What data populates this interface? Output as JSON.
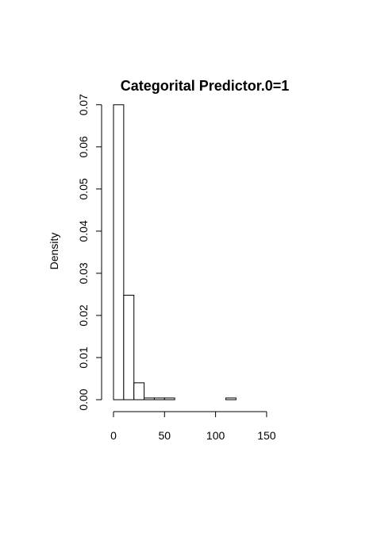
{
  "chart_data": {
    "type": "bar",
    "title": "Categorital Predictor.0=1",
    "xlabel": "",
    "ylabel": "Density",
    "bin_width": 10,
    "bins": [
      {
        "x0": 0,
        "x1": 10,
        "density": 0.07
      },
      {
        "x0": 10,
        "x1": 20,
        "density": 0.0248
      },
      {
        "x0": 20,
        "x1": 30,
        "density": 0.004
      },
      {
        "x0": 30,
        "x1": 40,
        "density": 0.0004
      },
      {
        "x0": 40,
        "x1": 50,
        "density": 0.0004
      },
      {
        "x0": 50,
        "x1": 60,
        "density": 0.0004
      },
      {
        "x0": 60,
        "x1": 70,
        "density": 0
      },
      {
        "x0": 70,
        "x1": 80,
        "density": 0
      },
      {
        "x0": 80,
        "x1": 90,
        "density": 0
      },
      {
        "x0": 90,
        "x1": 100,
        "density": 0
      },
      {
        "x0": 100,
        "x1": 110,
        "density": 0
      },
      {
        "x0": 110,
        "x1": 120,
        "density": 0.0004
      },
      {
        "x0": 120,
        "x1": 130,
        "density": 0
      },
      {
        "x0": 130,
        "x1": 140,
        "density": 0
      },
      {
        "x0": 140,
        "x1": 150,
        "density": 0
      },
      {
        "x0": 150,
        "x1": 160,
        "density": 0
      },
      {
        "x0": 160,
        "x1": 170,
        "density": 0
      },
      {
        "x0": 170,
        "x1": 180,
        "density": 0
      }
    ],
    "xlim": [
      0,
      180
    ],
    "ylim": [
      0,
      0.07
    ],
    "x_ticks": [
      0,
      50,
      100,
      150
    ],
    "x_tick_labels": [
      "0",
      "50",
      "100",
      "150"
    ],
    "y_ticks": [
      0,
      0.01,
      0.02,
      0.03,
      0.04,
      0.05,
      0.06,
      0.07
    ],
    "y_tick_labels": [
      "0.00",
      "0.01",
      "0.02",
      "0.03",
      "0.04",
      "0.05",
      "0.06",
      "0.07"
    ],
    "grid": false,
    "legend": "none"
  }
}
